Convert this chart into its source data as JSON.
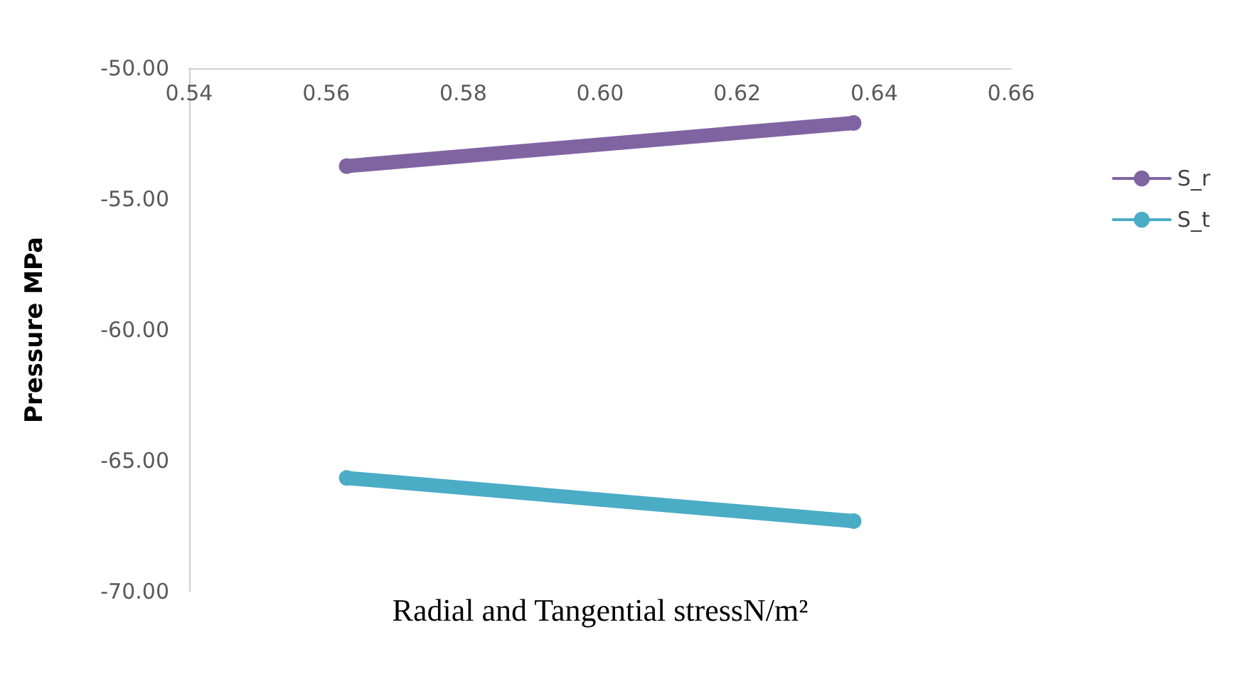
{
  "chart_data": {
    "type": "line",
    "xlabel": "Radial and Tangential stressN/m²",
    "ylabel": "Pressure MPa",
    "x": [
      0.563,
      0.637
    ],
    "series": [
      {
        "name": "S_r",
        "color": "#8064a2",
        "values": [
          -53.74,
          -52.09
        ]
      },
      {
        "name": "S_t",
        "color": "#4bacc6",
        "values": [
          -65.66,
          -67.31
        ]
      }
    ],
    "xlim": [
      0.54,
      0.66
    ],
    "xticks": [
      {
        "value": 0.54,
        "label": "0.54"
      },
      {
        "value": 0.56,
        "label": "0.56"
      },
      {
        "value": 0.58,
        "label": "0.58"
      },
      {
        "value": 0.6,
        "label": "0.60"
      },
      {
        "value": 0.62,
        "label": "0.62"
      },
      {
        "value": 0.64,
        "label": "0.64"
      },
      {
        "value": 0.66,
        "label": "0.66"
      }
    ],
    "ylim": [
      -70,
      -50
    ],
    "yticks": [
      {
        "value": -70,
        "label": "-70.00"
      },
      {
        "value": -65,
        "label": "-65.00"
      },
      {
        "value": -60,
        "label": "-60.00"
      },
      {
        "value": -55,
        "label": "-55.00"
      },
      {
        "value": -50,
        "label": "-50.00"
      }
    ],
    "grid": false,
    "legend": "right",
    "marker": "circle",
    "line_style": "solid"
  }
}
